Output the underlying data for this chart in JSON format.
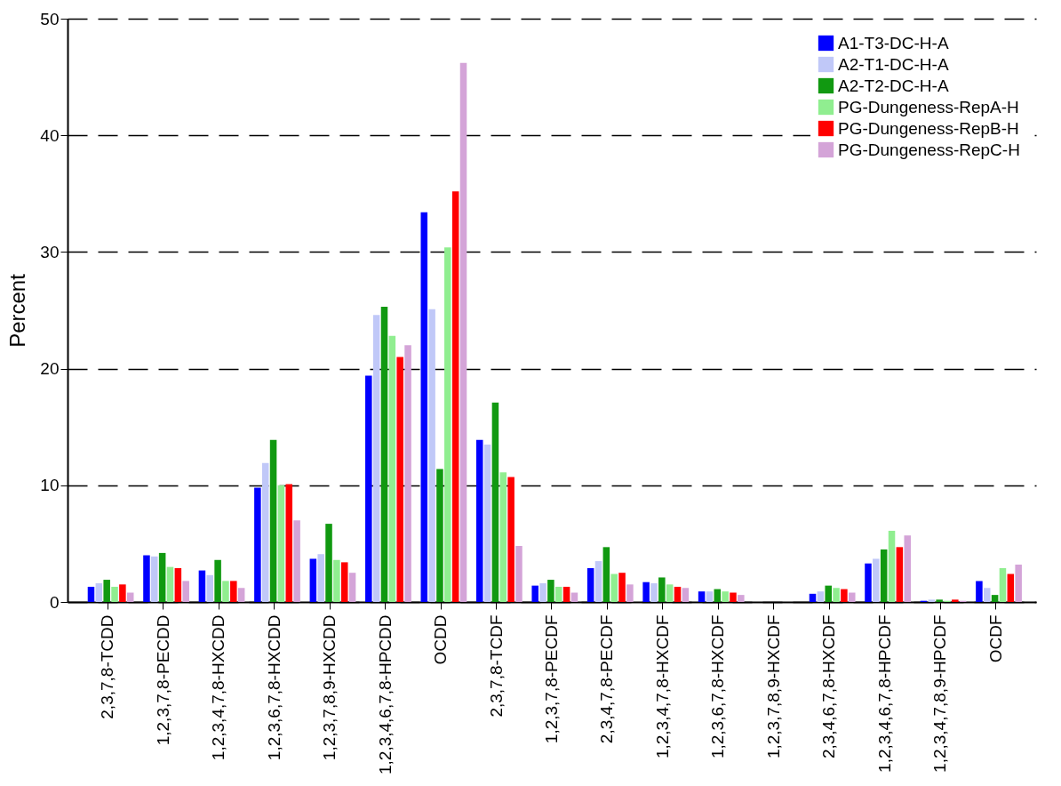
{
  "chart_data": {
    "type": "bar",
    "ylabel": "Percent",
    "categories": [
      "2,3,7,8-TCDD",
      "1,2,3,7,8-PECDD",
      "1,2,3,4,7,8-HXCDD",
      "1,2,3,6,7,8-HXCDD",
      "1,2,3,7,8,9-HXCDD",
      "1,2,3,4,6,7,8-HPCDD",
      "OCDD",
      "2,3,7,8-TCDF",
      "1,2,3,7,8-PECDF",
      "2,3,4,7,8-PECDF",
      "1,2,3,4,7,8-HXCDF",
      "1,2,3,6,7,8-HXCDF",
      "1,2,3,7,8,9-HXCDF",
      "2,3,4,6,7,8-HXCDF",
      "1,2,3,4,6,7,8-HPCDF",
      "1,2,3,4,7,8,9-HPCDF",
      "OCDF"
    ],
    "series": [
      {
        "name": "A1-T3-DC-H-A",
        "color": "#0000ff",
        "values": [
          1.3,
          4.0,
          2.7,
          9.8,
          3.7,
          19.4,
          33.4,
          13.9,
          1.4,
          2.9,
          1.7,
          0.9,
          0,
          0.7,
          3.3,
          0.1,
          1.8
        ]
      },
      {
        "name": "A2-T1-DC-H-A",
        "color": "#c0c8f8",
        "values": [
          1.6,
          3.9,
          2.3,
          11.9,
          4.1,
          24.6,
          25.1,
          13.5,
          1.6,
          3.5,
          1.6,
          0.9,
          0,
          0.9,
          3.7,
          0.2,
          1.2
        ]
      },
      {
        "name": "A2-T2-DC-H-A",
        "color": "#119911",
        "values": [
          1.9,
          4.2,
          3.6,
          13.9,
          6.7,
          25.3,
          11.4,
          17.1,
          1.9,
          4.7,
          2.1,
          1.1,
          0,
          1.4,
          4.5,
          0.2,
          0.6
        ]
      },
      {
        "name": "PG-Dungeness-RepA-H",
        "color": "#90ee90",
        "values": [
          1.3,
          3.0,
          1.8,
          10.0,
          3.6,
          22.8,
          30.4,
          11.1,
          1.3,
          2.4,
          1.5,
          0.9,
          0,
          1.2,
          6.1,
          0.1,
          2.9
        ]
      },
      {
        "name": "PG-Dungeness-RepB-H",
        "color": "#ff0000",
        "values": [
          1.5,
          2.9,
          1.8,
          10.1,
          3.4,
          21.0,
          35.2,
          10.7,
          1.3,
          2.5,
          1.3,
          0.8,
          0,
          1.1,
          4.7,
          0.2,
          2.4
        ]
      },
      {
        "name": "PG-Dungeness-RepC-H",
        "color": "#d4a4d8",
        "values": [
          0.8,
          1.8,
          1.2,
          7.0,
          2.5,
          22.0,
          46.2,
          4.8,
          0.8,
          1.5,
          1.2,
          0.6,
          0,
          0.8,
          5.7,
          0.1,
          3.2
        ]
      }
    ],
    "ylim": [
      0,
      50
    ],
    "yticks": [
      0,
      10,
      20,
      30,
      40,
      50
    ],
    "grid": "y",
    "legend": "top right"
  }
}
